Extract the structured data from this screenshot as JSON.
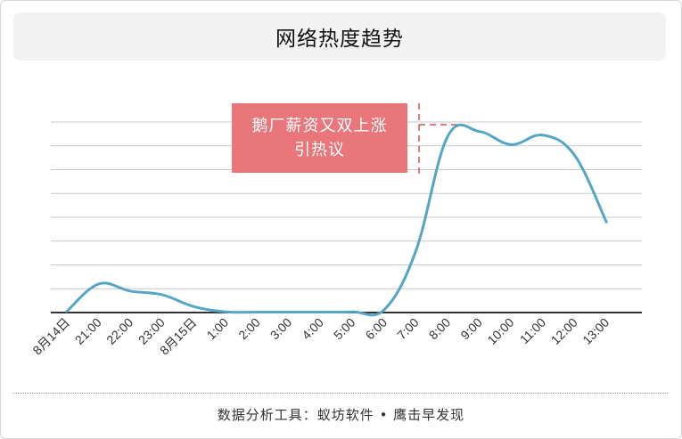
{
  "header": {
    "title": "网络热度趋势"
  },
  "annotation": {
    "text": "鹅厂薪资又双上涨引热议"
  },
  "footer": {
    "source": "数据分析工具：蚁坊软件 • 鹰击早发现"
  },
  "colors": {
    "line": "#55a5c6",
    "annotation_bg": "#e8767a",
    "annotation_leader": "#d9534f",
    "gridline": "#c8c8c8",
    "axis": "#333333"
  },
  "chart_data": {
    "type": "line",
    "title": "网络热度趋势",
    "xlabel": "",
    "ylabel": "",
    "categories": [
      "8月14日",
      "21:00",
      "22:00",
      "23:00",
      "8月15日",
      "1:00",
      "2:00",
      "3:00",
      "4:00",
      "5:00",
      "6:00",
      "7:00",
      "8:00",
      "9:00",
      "10:00",
      "11:00",
      "12:00",
      "13:00"
    ],
    "series": [
      {
        "values": [
          0.5,
          12,
          9,
          7.5,
          2.5,
          0.3,
          0.2,
          0.2,
          0.2,
          0.3,
          1.2,
          26,
          74,
          76,
          70.5,
          74.5,
          66,
          38
        ]
      }
    ],
    "ylim": [
      0,
      80
    ],
    "gridlines": 8,
    "y_tick_labels_shown": false,
    "annotations": [
      {
        "text": "鹅厂薪资又双上涨引热议",
        "at_category": "8:00"
      }
    ]
  }
}
